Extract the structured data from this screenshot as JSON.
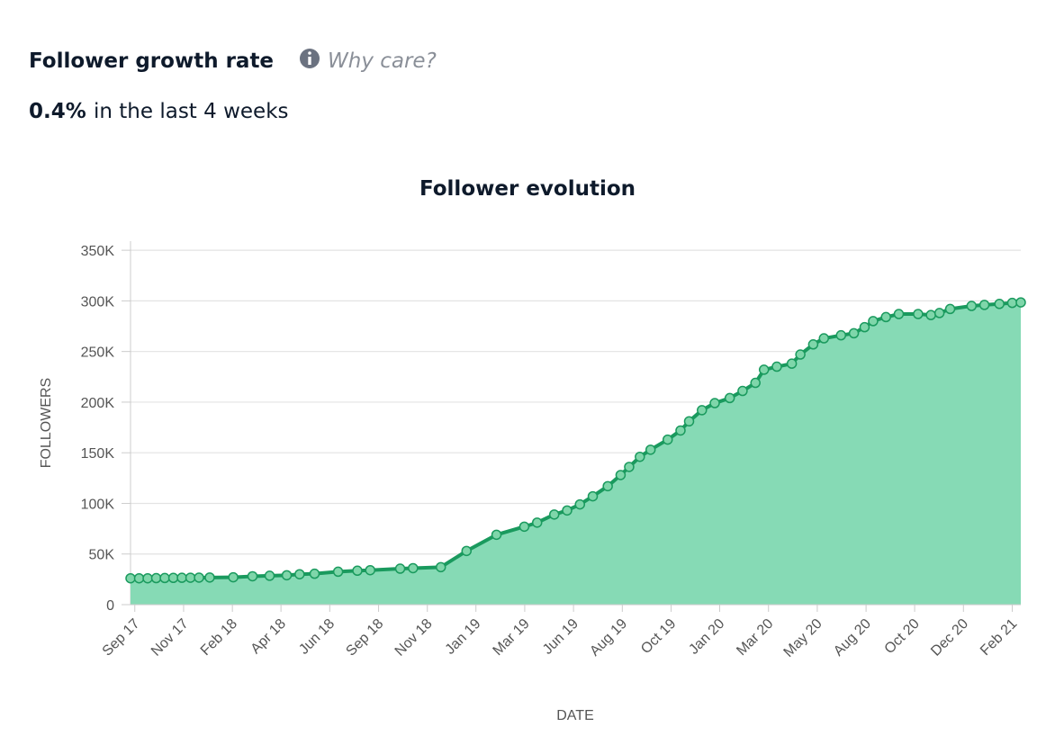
{
  "header": {
    "title": "Follower growth rate",
    "help": "Why care?",
    "rate": "0.4%",
    "rate_caption": "in the last 4 weeks"
  },
  "chart_data": {
    "type": "area",
    "title": "Follower evolution",
    "x_label": "DATE",
    "y_label": "FOLLOWERS",
    "x": [
      -0.2,
      0.2,
      0.6,
      1.0,
      1.4,
      1.8,
      2.2,
      2.6,
      3.0,
      3.5,
      4.6,
      5.5,
      6.3,
      7.1,
      7.7,
      8.4,
      9.5,
      10.4,
      11.0,
      12.4,
      13.0,
      14.3,
      15.5,
      16.9,
      18.2,
      18.8,
      19.6,
      20.2,
      20.8,
      21.4,
      22.1,
      22.7,
      23.1,
      23.6,
      24.1,
      24.9,
      25.5,
      25.9,
      26.5,
      27.1,
      27.8,
      28.4,
      29.0,
      29.4,
      30.0,
      30.7,
      31.1,
      31.7,
      32.2,
      33.0,
      33.6,
      34.1,
      34.5,
      35.1,
      35.7,
      36.6,
      37.2,
      37.6,
      38.1,
      39.1,
      39.7,
      40.4,
      41.0,
      41.4
    ],
    "values": [
      26000,
      26000,
      26000,
      26200,
      26300,
      26400,
      26500,
      26600,
      26700,
      26800,
      27000,
      28000,
      28500,
      29000,
      30000,
      30500,
      32500,
      33500,
      34000,
      35500,
      36000,
      37000,
      53000,
      69000,
      77000,
      81000,
      89000,
      93000,
      99000,
      107000,
      117000,
      128000,
      136000,
      146000,
      153000,
      163000,
      172000,
      181000,
      192000,
      199000,
      204000,
      211000,
      219000,
      232000,
      235000,
      238000,
      247000,
      257000,
      263000,
      266000,
      268000,
      274000,
      280000,
      284000,
      287000,
      287000,
      286000,
      288000,
      292000,
      295000,
      296000,
      297000,
      298000,
      298500
    ],
    "color": "#1a9a5e",
    "fill_color": "#86dab5",
    "marker_color": "#7fd6aa",
    "xlim": [
      -0.2,
      41.4
    ],
    "xticks": [
      {
        "value": 0,
        "label": "Sep 17"
      },
      {
        "value": 2.28,
        "label": "Nov 17"
      },
      {
        "value": 4.56,
        "label": "Feb 18"
      },
      {
        "value": 6.83,
        "label": "Apr 18"
      },
      {
        "value": 9.11,
        "label": "Jun 18"
      },
      {
        "value": 11.39,
        "label": "Sep 18"
      },
      {
        "value": 13.67,
        "label": "Nov 18"
      },
      {
        "value": 15.94,
        "label": "Jan 19"
      },
      {
        "value": 18.22,
        "label": "Mar 19"
      },
      {
        "value": 20.5,
        "label": "Jun 19"
      },
      {
        "value": 22.78,
        "label": "Aug 19"
      },
      {
        "value": 25.06,
        "label": "Oct 19"
      },
      {
        "value": 27.33,
        "label": "Jan 20"
      },
      {
        "value": 29.61,
        "label": "Mar 20"
      },
      {
        "value": 31.89,
        "label": "May 20"
      },
      {
        "value": 34.17,
        "label": "Aug 20"
      },
      {
        "value": 36.44,
        "label": "Oct 20"
      },
      {
        "value": 38.72,
        "label": "Dec 20"
      },
      {
        "value": 41.0,
        "label": "Feb 21"
      }
    ],
    "ylim": [
      0,
      359000
    ],
    "yticks": [
      0,
      {
        "value": 50000,
        "label": "50K"
      },
      {
        "value": 100000,
        "label": "100K"
      },
      {
        "value": 150000,
        "label": "150K"
      },
      {
        "value": 200000,
        "label": "200K"
      },
      {
        "value": 250000,
        "label": "250K"
      },
      {
        "value": 300000,
        "label": "300K"
      },
      {
        "value": 350000,
        "label": "350K"
      }
    ],
    "grid": true
  }
}
